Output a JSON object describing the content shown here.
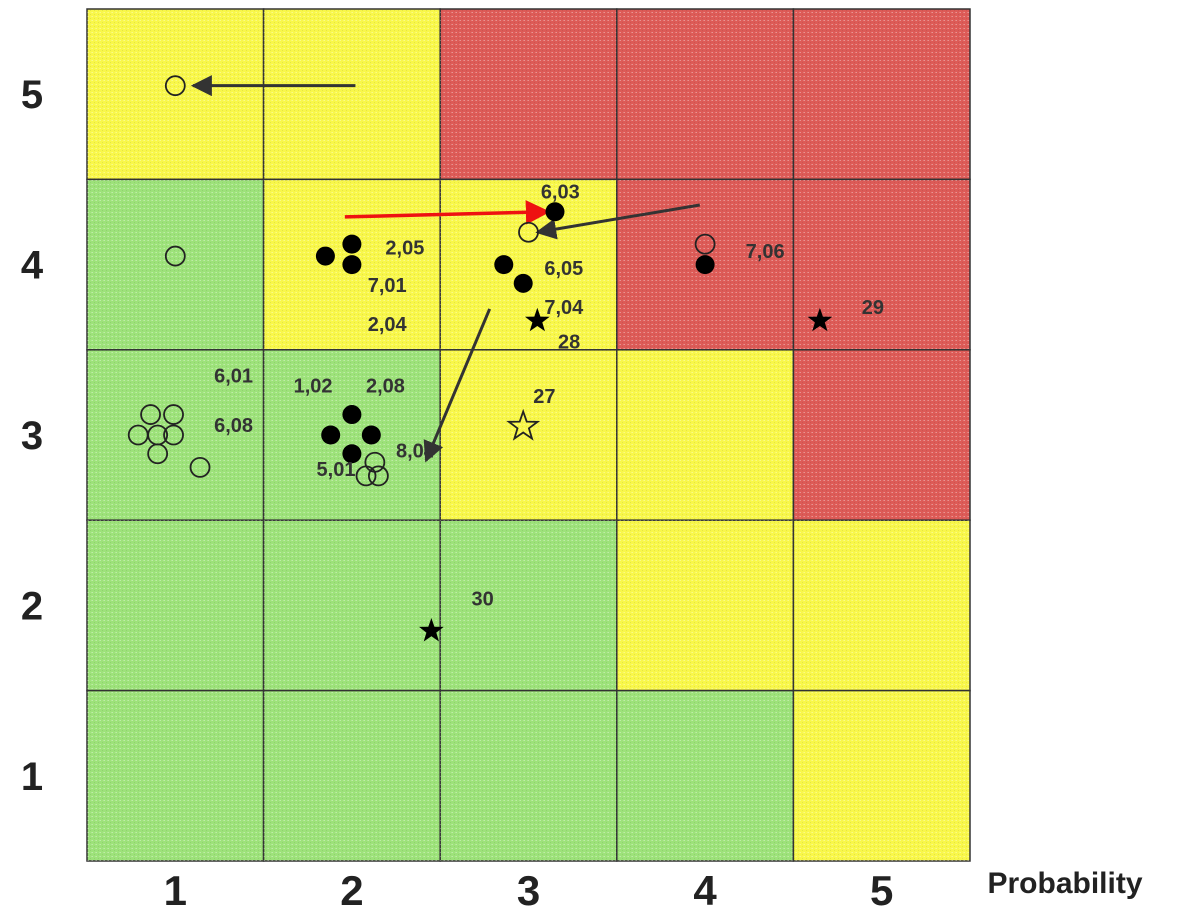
{
  "chart_data": {
    "type": "scatter",
    "title": "",
    "xlabel": "Probability",
    "ylabel": "",
    "x_ticks": [
      "1",
      "2",
      "3",
      "4",
      "5"
    ],
    "y_ticks": [
      "1",
      "2",
      "3",
      "4",
      "5"
    ],
    "xlim": [
      0.5,
      5.5
    ],
    "ylim": [
      0.5,
      5.5
    ],
    "grid": true,
    "colors": {
      "green": "#9de27a",
      "yellow": "#f8f74a",
      "red": "#dd5b57",
      "border": "#333333",
      "arrow": "#333333",
      "highlight_arrow": "#ee1111"
    },
    "cell_colors": [
      [
        "yellow",
        "yellow",
        "red",
        "red",
        "red"
      ],
      [
        "green",
        "yellow",
        "yellow",
        "red",
        "red"
      ],
      [
        "green",
        "green",
        "yellow",
        "yellow",
        "red"
      ],
      [
        "green",
        "green",
        "green",
        "yellow",
        "yellow"
      ],
      [
        "green",
        "green",
        "green",
        "green",
        "yellow"
      ]
    ],
    "markers": [
      {
        "kind": "open-circle",
        "x": 1.0,
        "y": 5.05
      },
      {
        "kind": "open-circle",
        "x": 1.0,
        "y": 4.05
      },
      {
        "kind": "filled-circle",
        "x": 1.85,
        "y": 4.05
      },
      {
        "kind": "filled-circle",
        "x": 2.0,
        "y": 4.12
      },
      {
        "kind": "filled-circle",
        "x": 2.0,
        "y": 4.0
      },
      {
        "kind": "filled-circle",
        "x": 3.15,
        "y": 4.31
      },
      {
        "kind": "open-circle",
        "x": 3.0,
        "y": 4.19
      },
      {
        "kind": "filled-circle",
        "x": 2.86,
        "y": 4.0
      },
      {
        "kind": "filled-circle",
        "x": 2.97,
        "y": 3.89
      },
      {
        "kind": "open-circle",
        "x": 4.0,
        "y": 4.12
      },
      {
        "kind": "filled-circle",
        "x": 4.0,
        "y": 4.0
      },
      {
        "kind": "filled-star",
        "x": 3.05,
        "y": 3.67
      },
      {
        "kind": "filled-star",
        "x": 4.65,
        "y": 3.67
      },
      {
        "kind": "open-circle",
        "x": 0.86,
        "y": 3.12
      },
      {
        "kind": "open-circle",
        "x": 0.99,
        "y": 3.12
      },
      {
        "kind": "open-circle",
        "x": 0.79,
        "y": 3.0
      },
      {
        "kind": "open-circle",
        "x": 0.9,
        "y": 3.0
      },
      {
        "kind": "open-circle",
        "x": 0.99,
        "y": 3.0
      },
      {
        "kind": "open-circle",
        "x": 0.9,
        "y": 2.89
      },
      {
        "kind": "open-circle",
        "x": 1.14,
        "y": 2.81
      },
      {
        "kind": "filled-circle",
        "x": 2.0,
        "y": 3.12
      },
      {
        "kind": "filled-circle",
        "x": 1.88,
        "y": 3.0
      },
      {
        "kind": "filled-circle",
        "x": 2.11,
        "y": 3.0
      },
      {
        "kind": "filled-circle",
        "x": 2.0,
        "y": 2.89
      },
      {
        "kind": "open-circle",
        "x": 2.13,
        "y": 2.84
      },
      {
        "kind": "open-circle",
        "x": 2.08,
        "y": 2.76
      },
      {
        "kind": "open-circle",
        "x": 2.15,
        "y": 2.76
      },
      {
        "kind": "open-star",
        "x": 2.97,
        "y": 3.05
      },
      {
        "kind": "filled-star",
        "x": 2.45,
        "y": 1.85
      }
    ],
    "arrows": [
      {
        "from": [
          2.02,
          5.05
        ],
        "to": [
          1.1,
          5.05
        ],
        "color": "arrow"
      },
      {
        "from": [
          1.96,
          4.28
        ],
        "to": [
          3.11,
          4.31
        ],
        "color": "highlight_arrow"
      },
      {
        "from": [
          3.97,
          4.35
        ],
        "to": [
          3.05,
          4.19
        ],
        "color": "arrow"
      },
      {
        "from": [
          2.78,
          3.74
        ],
        "to": [
          2.42,
          2.85
        ],
        "color": "arrow"
      }
    ],
    "annotations": [
      {
        "text": "6,03",
        "x": 3.18,
        "y": 4.43
      },
      {
        "text": "2,05",
        "x": 2.3,
        "y": 4.1
      },
      {
        "text": "6,05",
        "x": 3.2,
        "y": 3.98
      },
      {
        "text": "7,01",
        "x": 2.2,
        "y": 3.88
      },
      {
        "text": "7,04",
        "x": 3.2,
        "y": 3.75
      },
      {
        "text": "2,04",
        "x": 2.2,
        "y": 3.65
      },
      {
        "text": "28",
        "x": 3.23,
        "y": 3.55
      },
      {
        "text": "7,06",
        "x": 4.34,
        "y": 4.08
      },
      {
        "text": "29",
        "x": 4.95,
        "y": 3.75
      },
      {
        "text": "6,01",
        "x": 1.33,
        "y": 3.35
      },
      {
        "text": "6,08",
        "x": 1.33,
        "y": 3.06
      },
      {
        "text": "1,02",
        "x": 1.78,
        "y": 3.29
      },
      {
        "text": "2,08",
        "x": 2.19,
        "y": 3.29
      },
      {
        "text": "27",
        "x": 3.09,
        "y": 3.23
      },
      {
        "text": "8,04",
        "x": 2.36,
        "y": 2.91
      },
      {
        "text": "5,01",
        "x": 1.91,
        "y": 2.8
      },
      {
        "text": "30",
        "x": 2.74,
        "y": 2.04
      }
    ]
  }
}
